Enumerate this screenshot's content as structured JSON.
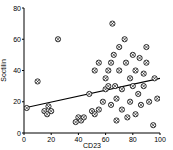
{
  "chart_data": {
    "type": "scatter",
    "x_label": "CD23",
    "y_label": "Soctilin",
    "x": [
      2,
      10,
      15,
      17,
      18,
      20,
      25,
      38,
      40,
      42,
      44,
      48,
      50,
      52,
      52,
      55,
      55,
      58,
      60,
      60,
      62,
      62,
      64,
      64,
      65,
      66,
      67,
      68,
      68,
      70,
      70,
      72,
      72,
      74,
      75,
      76,
      78,
      78,
      80,
      80,
      82,
      82,
      84,
      85,
      86,
      88,
      88,
      90,
      90,
      92,
      95,
      96,
      98
    ],
    "values": [
      16,
      33,
      14,
      12,
      17,
      14,
      60,
      7,
      10,
      8,
      10,
      25,
      14,
      12,
      40,
      15,
      45,
      20,
      28,
      35,
      30,
      40,
      18,
      45,
      70,
      50,
      30,
      8,
      22,
      40,
      55,
      15,
      28,
      60,
      45,
      10,
      35,
      20,
      30,
      50,
      12,
      40,
      25,
      48,
      18,
      38,
      30,
      45,
      55,
      20,
      5,
      35,
      22
    ],
    "trend_line": {
      "x": [
        0,
        100
      ],
      "y": [
        16,
        35
      ]
    },
    "marker": "circle-cross",
    "color": "#000000",
    "xlim": [
      0,
      100
    ],
    "xticks": [
      0,
      20,
      40,
      60,
      80,
      100
    ],
    "ylim": [
      0,
      80
    ],
    "yticks": [
      0,
      20,
      40,
      60,
      80
    ],
    "grid": false
  }
}
